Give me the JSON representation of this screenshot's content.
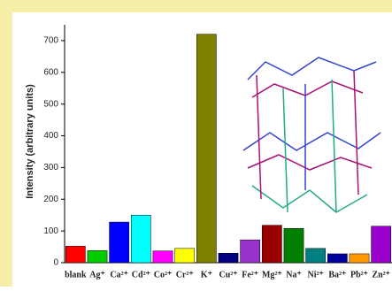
{
  "chart_data": {
    "type": "bar",
    "y_label": "Intensity (arbitrary units)",
    "categories": [
      "blank",
      "Ag⁺",
      "Ca²⁺",
      "Cd²⁺",
      "Co²⁺",
      "Cr²⁺",
      "K⁺",
      "Cu²⁺",
      "Fe²⁺",
      "Mg²⁺",
      "Na⁺",
      "Ni²⁺",
      "Ba²⁺",
      "Pb²⁺",
      "Zn²⁺"
    ],
    "values": [
      52,
      38,
      128,
      150,
      37,
      45,
      720,
      30,
      72,
      118,
      108,
      45,
      28,
      28,
      115
    ],
    "colors": [
      "#ff0000",
      "#00cc00",
      "#0000ff",
      "#00ffff",
      "#ff00ff",
      "#ffff00",
      "#808000",
      "#000080",
      "#9933cc",
      "#990000",
      "#008000",
      "#008080",
      "#000099",
      "#ff9900",
      "#9900cc"
    ],
    "ylim": [
      0,
      750
    ],
    "yticks": [
      0,
      100,
      200,
      300,
      400,
      500,
      600,
      700
    ]
  }
}
